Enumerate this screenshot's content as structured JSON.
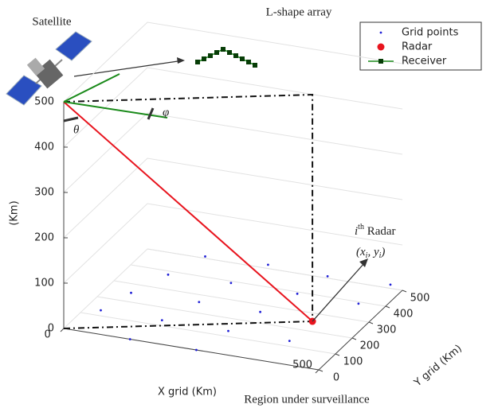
{
  "chart_data": {
    "type": "scatter3d",
    "title": "L-shape array",
    "satellite_label": "Satellite",
    "xlabel": "X grid (Km)",
    "ylabel": "Y grid (Km)",
    "zlabel": "(Km)",
    "caption": "Region under surveillance",
    "radar_annotation": [
      "i",
      "th",
      " Radar"
    ],
    "radar_coords": [
      "(x",
      "i",
      ", y",
      "i",
      ")"
    ],
    "angle_theta": "θ",
    "angle_phi": "φ",
    "xlim": [
      0,
      500
    ],
    "ylim": [
      0,
      500
    ],
    "zlim": [
      0,
      500
    ],
    "xticks": [
      0,
      500
    ],
    "yticks": [
      0,
      100,
      200,
      300,
      400,
      500
    ],
    "zticks": [
      0,
      100,
      200,
      300,
      400,
      500
    ],
    "grid": true,
    "legend_position": "upper right",
    "series": [
      {
        "name": "Grid points",
        "color": "#1f1fd6",
        "marker": "dot",
        "x": [
          110,
          230,
          350,
          470,
          80,
          200,
          330,
          450,
          50,
          180,
          300,
          30,
          150,
          280,
          400,
          130,
          260
        ],
        "y": [
          510,
          520,
          510,
          520,
          380,
          390,
          390,
          390,
          250,
          260,
          260,
          130,
          130,
          130,
          130,
          0,
          0
        ],
        "z": [
          0,
          0,
          0,
          0,
          0,
          0,
          0,
          0,
          0,
          0,
          0,
          0,
          0,
          0,
          0,
          0,
          0
        ]
      },
      {
        "name": "Radar",
        "color": "#e8141e",
        "marker": "circle",
        "x": [
          404
        ],
        "y": [
          255
        ],
        "z": [
          0
        ]
      },
      {
        "name": "Receiver",
        "color": "#1a8a1a",
        "marker": "square-line"
      }
    ],
    "satellite": {
      "x": 0,
      "y": 0,
      "z": 500
    }
  }
}
